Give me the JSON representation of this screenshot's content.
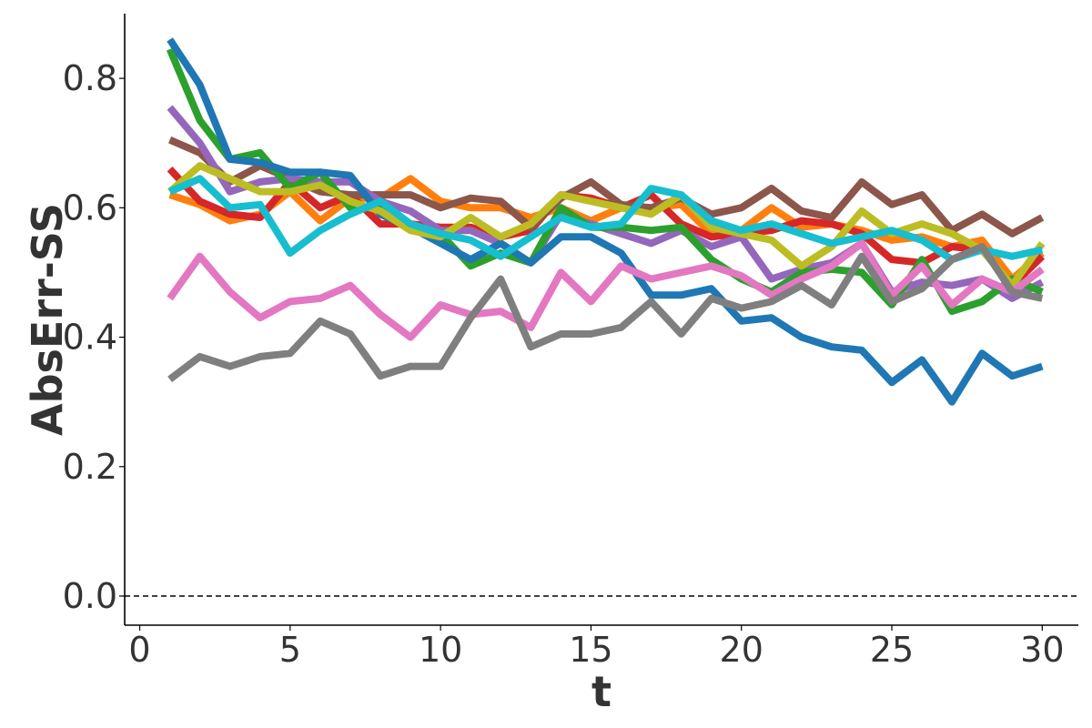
{
  "chart_data": {
    "type": "line",
    "title": "",
    "xlabel": "t",
    "ylabel": "AbsErr-SS",
    "xlim": [
      -0.5,
      31.2
    ],
    "ylim": [
      -0.045,
      0.9
    ],
    "xticks": [
      0,
      5,
      10,
      15,
      20,
      25,
      30
    ],
    "xtick_labels": [
      "0",
      "5",
      "10",
      "15",
      "20",
      "25",
      "30"
    ],
    "yticks": [
      0.0,
      0.2,
      0.4,
      0.6,
      0.8
    ],
    "ytick_labels": [
      "0.0",
      "0.2",
      "0.4",
      "0.6",
      "0.8"
    ],
    "grid": false,
    "legend": "none",
    "reference_line": {
      "y": 0.0,
      "style": "dashed",
      "color": "#000000"
    },
    "x": [
      1,
      2,
      3,
      4,
      5,
      6,
      7,
      8,
      9,
      10,
      11,
      12,
      13,
      14,
      15,
      16,
      17,
      18,
      19,
      20,
      21,
      22,
      23,
      24,
      25,
      26,
      27,
      28,
      29,
      30
    ],
    "series": [
      {
        "color": "#ff7f0e",
        "values": [
          0.62,
          0.605,
          0.58,
          0.59,
          0.625,
          0.58,
          0.615,
          0.615,
          0.645,
          0.61,
          0.6,
          0.6,
          0.585,
          0.6,
          0.58,
          0.6,
          0.6,
          0.605,
          0.56,
          0.565,
          0.6,
          0.57,
          0.575,
          0.565,
          0.55,
          0.555,
          0.54,
          0.55,
          0.49,
          0.53
        ]
      },
      {
        "color": "#d62728",
        "values": [
          0.66,
          0.61,
          0.59,
          0.585,
          0.64,
          0.6,
          0.62,
          0.575,
          0.575,
          0.57,
          0.57,
          0.555,
          0.565,
          0.62,
          0.615,
          0.6,
          0.62,
          0.575,
          0.555,
          0.56,
          0.565,
          0.58,
          0.575,
          0.56,
          0.52,
          0.515,
          0.54,
          0.535,
          0.48,
          0.525
        ]
      },
      {
        "color": "#8c564b",
        "values": [
          0.705,
          0.685,
          0.64,
          0.665,
          0.645,
          0.625,
          0.62,
          0.62,
          0.62,
          0.6,
          0.615,
          0.61,
          0.57,
          0.615,
          0.64,
          0.605,
          0.6,
          0.615,
          0.59,
          0.6,
          0.63,
          0.595,
          0.585,
          0.64,
          0.605,
          0.62,
          0.565,
          0.59,
          0.56,
          0.585
        ]
      },
      {
        "color": "#9467bd",
        "values": [
          0.755,
          0.7,
          0.625,
          0.64,
          0.645,
          0.64,
          0.64,
          0.61,
          0.595,
          0.565,
          0.565,
          0.545,
          0.515,
          0.59,
          0.575,
          0.56,
          0.545,
          0.565,
          0.54,
          0.555,
          0.49,
          0.505,
          0.515,
          0.545,
          0.47,
          0.485,
          0.48,
          0.49,
          0.46,
          0.485
        ]
      },
      {
        "color": "#2ca02c",
        "values": [
          0.845,
          0.735,
          0.675,
          0.685,
          0.63,
          0.655,
          0.6,
          0.6,
          0.575,
          0.56,
          0.51,
          0.53,
          0.515,
          0.6,
          0.57,
          0.57,
          0.565,
          0.57,
          0.52,
          0.49,
          0.47,
          0.5,
          0.505,
          0.5,
          0.45,
          0.52,
          0.44,
          0.455,
          0.49,
          0.47
        ]
      },
      {
        "color": "#1f77b4",
        "values": [
          0.86,
          0.79,
          0.675,
          0.67,
          0.655,
          0.655,
          0.65,
          0.59,
          0.57,
          0.545,
          0.52,
          0.545,
          0.515,
          0.555,
          0.555,
          0.53,
          0.465,
          0.465,
          0.475,
          0.425,
          0.43,
          0.4,
          0.385,
          0.38,
          0.33,
          0.365,
          0.3,
          0.375,
          0.34,
          0.355
        ]
      },
      {
        "color": "#bcbd22",
        "values": [
          0.625,
          0.665,
          0.645,
          0.625,
          0.625,
          0.635,
          0.61,
          0.595,
          0.565,
          0.555,
          0.585,
          0.555,
          0.575,
          0.62,
          0.61,
          0.6,
          0.59,
          0.62,
          0.57,
          0.56,
          0.55,
          0.51,
          0.54,
          0.595,
          0.56,
          0.575,
          0.56,
          0.535,
          0.48,
          0.545
        ]
      },
      {
        "color": "#17becf",
        "values": [
          0.625,
          0.645,
          0.6,
          0.605,
          0.53,
          0.565,
          0.59,
          0.61,
          0.575,
          0.56,
          0.55,
          0.525,
          0.555,
          0.585,
          0.57,
          0.575,
          0.63,
          0.62,
          0.58,
          0.565,
          0.575,
          0.56,
          0.545,
          0.555,
          0.565,
          0.55,
          0.52,
          0.535,
          0.525,
          0.535
        ]
      },
      {
        "color": "#e377c2",
        "values": [
          0.46,
          0.525,
          0.47,
          0.43,
          0.455,
          0.46,
          0.48,
          0.435,
          0.4,
          0.45,
          0.435,
          0.44,
          0.415,
          0.5,
          0.455,
          0.51,
          0.49,
          0.5,
          0.51,
          0.495,
          0.465,
          0.49,
          0.51,
          0.545,
          0.465,
          0.51,
          0.45,
          0.49,
          0.47,
          0.505
        ]
      },
      {
        "color": "#7f7f7f",
        "values": [
          0.335,
          0.37,
          0.355,
          0.37,
          0.375,
          0.425,
          0.405,
          0.34,
          0.355,
          0.355,
          0.43,
          0.49,
          0.385,
          0.405,
          0.405,
          0.415,
          0.455,
          0.405,
          0.46,
          0.445,
          0.455,
          0.48,
          0.45,
          0.525,
          0.455,
          0.475,
          0.52,
          0.54,
          0.47,
          0.46
        ]
      }
    ]
  }
}
